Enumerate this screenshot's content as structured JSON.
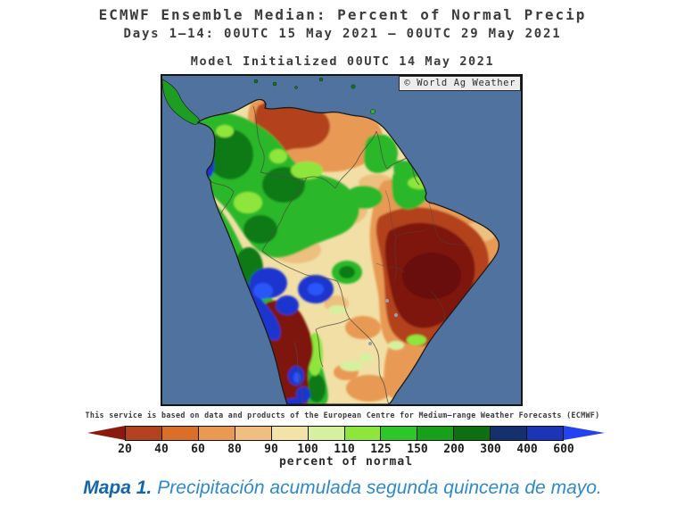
{
  "header": {
    "title": "ECMWF Ensemble Median: Percent of Normal Precip",
    "subtitle": "Days 1–14: 00UTC 15 May 2021 – 00UTC 29 May 2021",
    "init_line": "Model Initialized 00UTC 14 May 2021"
  },
  "map": {
    "credit_badge": "© World Ag Weather",
    "ocean_color": "#4f739e",
    "coast_color": "#1a1a1a"
  },
  "disclaimer": "This service is based on data and products of the European Centre for Medium–range Weather Forecasts (ECMWF)",
  "colorbar": {
    "tick_labels": [
      "20",
      "40",
      "60",
      "80",
      "90",
      "100",
      "110",
      "125",
      "150",
      "200",
      "300",
      "400",
      "600"
    ],
    "unit_label": "percent of normal",
    "arrow_left_color": "#8a190e",
    "arrow_right_color": "#2343ef",
    "segment_colors": [
      "#b3421f",
      "#d96f28",
      "#e89a55",
      "#eebf80",
      "#f2e4a9",
      "#d7f0a0",
      "#8ee63c",
      "#2ec62a",
      "#18a01c",
      "#0e6e12",
      "#15306e",
      "#1a35b5"
    ]
  },
  "caption": {
    "label": "Mapa 1.",
    "text": "Precipitación acumulada segunda quincena de mayo."
  }
}
